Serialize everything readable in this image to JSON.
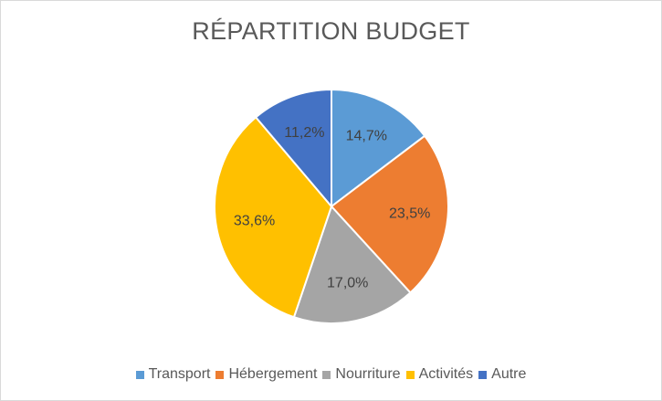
{
  "chart_data": {
    "type": "pie",
    "title": "RÉPARTITION BUDGET",
    "categories": [
      "Transport",
      "Hébergement",
      "Nourriture",
      "Activités",
      "Autre"
    ],
    "values": [
      14.7,
      23.5,
      17.0,
      33.6,
      11.2
    ],
    "labels": [
      "14,7%",
      "23,5%",
      "17,0%",
      "33,6%",
      "11,2%"
    ],
    "colors": [
      "#5B9BD5",
      "#ED7D31",
      "#A5A5A5",
      "#FFC000",
      "#4472C4"
    ],
    "legend_position": "bottom"
  }
}
